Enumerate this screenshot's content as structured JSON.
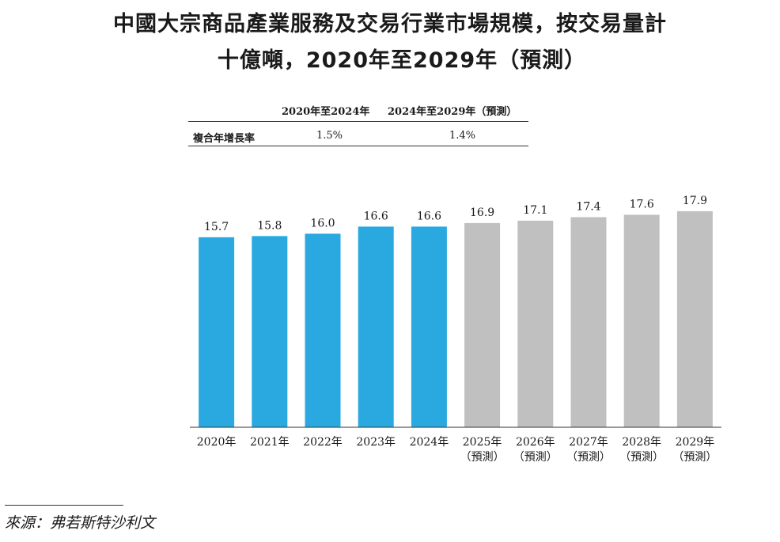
{
  "title_line1": "中國大宗商品產業服務及交易行業市場規模，按交易量計",
  "title_line2": "十億噸，2020年至2029年（預測）",
  "cagr_table": {
    "header_hist": "2020年至2024年",
    "header_fcst": "2024年至2029年（預測）",
    "row_label": "複合年增長率",
    "value_hist": "1.5%",
    "value_fcst": "1.4%"
  },
  "chart_data": {
    "type": "bar",
    "title": "中國大宗商品產業服務及交易行業市場規模，按交易量計 十億噸，2020年至2029年（預測）",
    "xlabel": "",
    "ylabel": "",
    "categories": [
      "2020年",
      "2021年",
      "2022年",
      "2023年",
      "2024年",
      "2025年",
      "2026年",
      "2027年",
      "2028年",
      "2029年"
    ],
    "category_sublabels": [
      "",
      "",
      "",
      "",
      "",
      "（預測）",
      "（預測）",
      "（預測）",
      "（預測）",
      "（預測）"
    ],
    "values": [
      15.7,
      15.8,
      16.0,
      16.6,
      16.6,
      16.9,
      17.1,
      17.4,
      17.6,
      17.9
    ],
    "value_labels": [
      "15.7",
      "15.8",
      "16.0",
      "16.6",
      "16.6",
      "16.9",
      "17.1",
      "17.4",
      "17.6",
      "17.9"
    ],
    "forecast_flags": [
      false,
      false,
      false,
      false,
      false,
      true,
      true,
      true,
      true,
      true
    ],
    "colors": {
      "historical": "#29a9e0",
      "forecast": "#c0c0c0"
    },
    "ylim": [
      0,
      18
    ],
    "grid": false,
    "legend": "none"
  },
  "source": "來源：弗若斯特沙利文"
}
